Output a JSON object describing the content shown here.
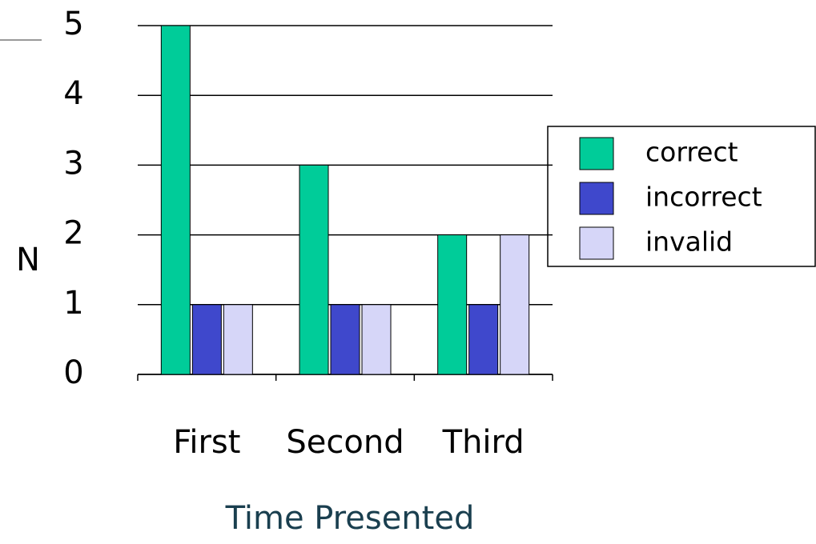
{
  "chart_data": {
    "type": "bar",
    "categories": [
      "First",
      "Second",
      "Third"
    ],
    "series": [
      {
        "name": "correct",
        "color": "#00cc99",
        "values": [
          5,
          3,
          2
        ]
      },
      {
        "name": "incorrect",
        "color": "#3f48cc",
        "values": [
          1,
          1,
          1
        ]
      },
      {
        "name": "invalid",
        "color": "#d6d6f8",
        "values": [
          1,
          1,
          2
        ]
      }
    ],
    "ylim": [
      0,
      5
    ],
    "yticks": [
      0,
      1,
      2,
      3,
      4,
      5
    ],
    "grid": true,
    "y_label": "N",
    "x_label": "Time Presented",
    "legend": "right"
  }
}
